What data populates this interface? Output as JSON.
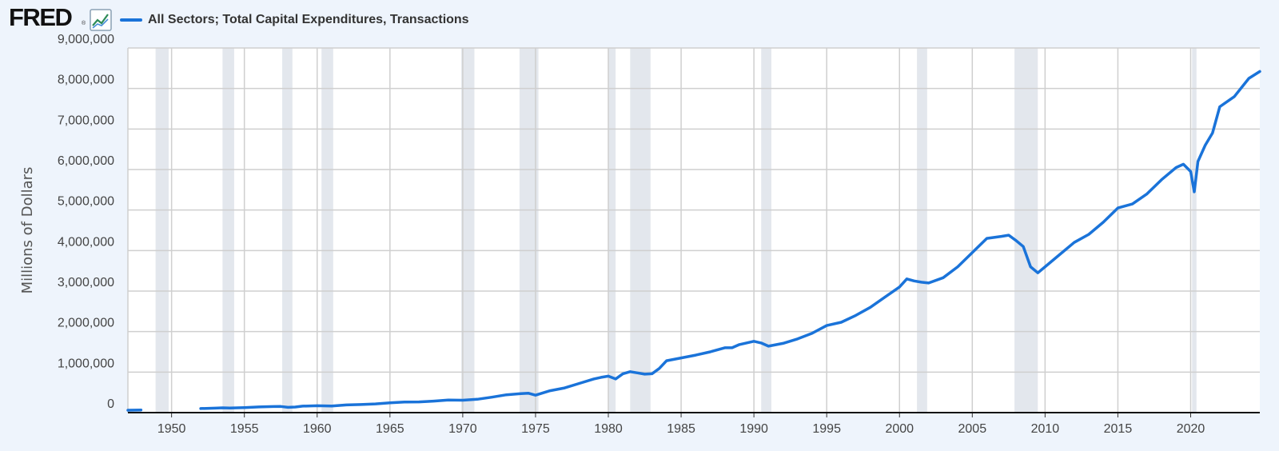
{
  "header": {
    "logo_text": "FRED",
    "logo_mark": "®",
    "logo_icon": "chart-line-icon"
  },
  "colors": {
    "line": "#1a73d9",
    "recession": "#e3e7ed",
    "grid": "#cfcfcf",
    "background": "#eef4fc",
    "plot": "#ffffff"
  },
  "chart_data": {
    "type": "line",
    "ylabel": "Millions of Dollars",
    "xlim": [
      1947.0,
      2024.75
    ],
    "ylim": [
      0,
      9000000
    ],
    "yticks": [
      0,
      1000000,
      2000000,
      3000000,
      4000000,
      5000000,
      6000000,
      7000000,
      8000000,
      9000000
    ],
    "ytick_labels": [
      "0",
      "1,000,000",
      "2,000,000",
      "3,000,000",
      "4,000,000",
      "5,000,000",
      "6,000,000",
      "7,000,000",
      "8,000,000",
      "9,000,000"
    ],
    "xticks": [
      1950,
      1955,
      1960,
      1965,
      1970,
      1975,
      1980,
      1985,
      1990,
      1995,
      2000,
      2005,
      2010,
      2015,
      2020
    ],
    "xtick_labels": [
      "1950",
      "1955",
      "1960",
      "1965",
      "1970",
      "1975",
      "1980",
      "1985",
      "1990",
      "1995",
      "2000",
      "2005",
      "2010",
      "2015",
      "2020"
    ],
    "grid": true,
    "legend_position": "top-left",
    "recessions": [
      [
        1948.9,
        1949.8
      ],
      [
        1953.5,
        1954.3
      ],
      [
        1957.6,
        1958.3
      ],
      [
        1960.3,
        1961.1
      ],
      [
        1969.9,
        1970.8
      ],
      [
        1973.9,
        1975.2
      ],
      [
        1980.0,
        1980.5
      ],
      [
        1981.5,
        1982.9
      ],
      [
        1990.5,
        1991.2
      ],
      [
        2001.2,
        2001.9
      ],
      [
        2007.9,
        2009.5
      ],
      [
        2020.1,
        2020.4
      ]
    ],
    "series": [
      {
        "name": "All Sectors; Total Capital Expenditures, Transactions",
        "segments": [
          [
            [
              1947.0,
              60000
            ],
            [
              1947.9,
              65000
            ]
          ],
          [
            [
              1952.0,
              100000
            ],
            [
              1953.0,
              110000
            ],
            [
              1953.5,
              118000
            ],
            [
              1954.0,
              112000
            ],
            [
              1955.0,
              125000
            ],
            [
              1956.0,
              140000
            ],
            [
              1957.0,
              150000
            ],
            [
              1957.5,
              152000
            ],
            [
              1958.0,
              130000
            ],
            [
              1958.5,
              138000
            ],
            [
              1959.0,
              160000
            ],
            [
              1960.0,
              170000
            ],
            [
              1961.0,
              162000
            ],
            [
              1962.0,
              190000
            ],
            [
              1963.0,
              200000
            ],
            [
              1964.0,
              215000
            ],
            [
              1965.0,
              240000
            ],
            [
              1966.0,
              260000
            ],
            [
              1967.0,
              265000
            ],
            [
              1968.0,
              285000
            ],
            [
              1969.0,
              310000
            ],
            [
              1970.0,
              305000
            ],
            [
              1971.0,
              330000
            ],
            [
              1972.0,
              380000
            ],
            [
              1973.0,
              440000
            ],
            [
              1974.0,
              470000
            ],
            [
              1974.5,
              480000
            ],
            [
              1975.0,
              430000
            ],
            [
              1976.0,
              540000
            ],
            [
              1977.0,
              610000
            ],
            [
              1978.0,
              720000
            ],
            [
              1979.0,
              830000
            ],
            [
              1979.5,
              870000
            ],
            [
              1980.0,
              900000
            ],
            [
              1980.5,
              830000
            ],
            [
              1981.0,
              960000
            ],
            [
              1981.5,
              1010000
            ],
            [
              1982.0,
              980000
            ],
            [
              1982.5,
              950000
            ],
            [
              1983.0,
              960000
            ],
            [
              1983.5,
              1090000
            ],
            [
              1984.0,
              1280000
            ],
            [
              1985.0,
              1350000
            ],
            [
              1986.0,
              1420000
            ],
            [
              1987.0,
              1500000
            ],
            [
              1988.0,
              1600000
            ],
            [
              1988.5,
              1600000
            ],
            [
              1989.0,
              1680000
            ],
            [
              1990.0,
              1760000
            ],
            [
              1990.5,
              1720000
            ],
            [
              1991.0,
              1640000
            ],
            [
              1992.0,
              1710000
            ],
            [
              1993.0,
              1820000
            ],
            [
              1994.0,
              1960000
            ],
            [
              1995.0,
              2150000
            ],
            [
              1996.0,
              2230000
            ],
            [
              1997.0,
              2400000
            ],
            [
              1998.0,
              2600000
            ],
            [
              1999.0,
              2850000
            ],
            [
              2000.0,
              3100000
            ],
            [
              2000.5,
              3300000
            ],
            [
              2001.0,
              3250000
            ],
            [
              2001.5,
              3220000
            ],
            [
              2002.0,
              3200000
            ],
            [
              2003.0,
              3330000
            ],
            [
              2004.0,
              3600000
            ],
            [
              2005.0,
              3950000
            ],
            [
              2006.0,
              4300000
            ],
            [
              2007.0,
              4350000
            ],
            [
              2007.5,
              4380000
            ],
            [
              2008.0,
              4250000
            ],
            [
              2008.5,
              4100000
            ],
            [
              2009.0,
              3600000
            ],
            [
              2009.5,
              3450000
            ],
            [
              2010.0,
              3600000
            ],
            [
              2011.0,
              3900000
            ],
            [
              2012.0,
              4200000
            ],
            [
              2013.0,
              4400000
            ],
            [
              2014.0,
              4700000
            ],
            [
              2015.0,
              5050000
            ],
            [
              2016.0,
              5150000
            ],
            [
              2017.0,
              5400000
            ],
            [
              2018.0,
              5750000
            ],
            [
              2019.0,
              6050000
            ],
            [
              2019.5,
              6130000
            ],
            [
              2020.0,
              5950000
            ],
            [
              2020.25,
              5450000
            ],
            [
              2020.5,
              6200000
            ],
            [
              2021.0,
              6600000
            ],
            [
              2021.5,
              6900000
            ],
            [
              2022.0,
              7550000
            ],
            [
              2023.0,
              7800000
            ],
            [
              2024.0,
              8250000
            ],
            [
              2024.75,
              8420000
            ]
          ]
        ]
      }
    ]
  }
}
